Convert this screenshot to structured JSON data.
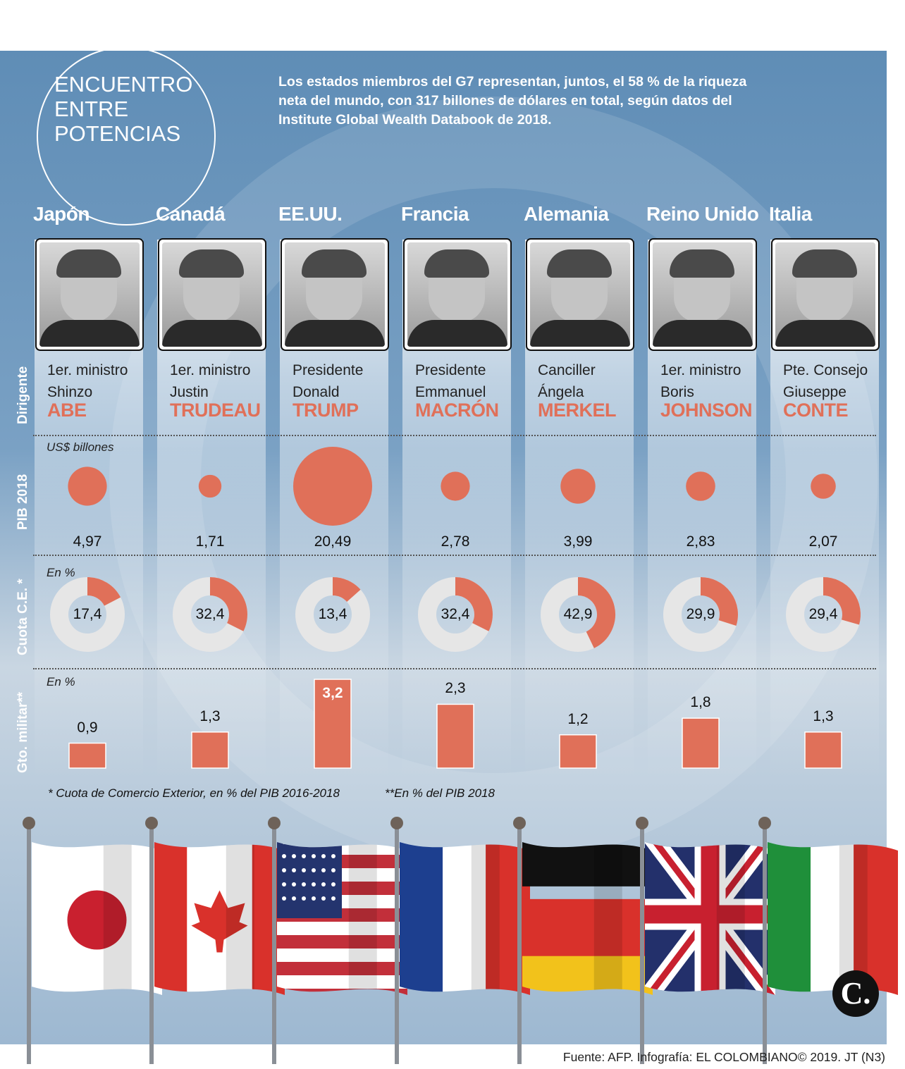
{
  "title": [
    "ENCUENTRO",
    "ENTRE",
    "POTENCIAS"
  ],
  "intro": "Los estados miembros del G7 representan, juntos, el 58 % de la riqueza neta del mundo, con 317 billones de dólares en total, según datos del Institute Global Wealth Databook de 2018.",
  "row_labels": {
    "leader": "Dirigente",
    "gdp": "PIB 2018",
    "trade": "Cuota C.E. *",
    "military": "Gto. militar**"
  },
  "units": {
    "gdp": "US$ billones",
    "trade": "En %",
    "military": "En %"
  },
  "footnotes": [
    "* Cuota de Comercio Exterior, en % del PIB 2016-2018",
    "**En % del PIB 2018"
  ],
  "source": "Fuente: AFP. Infografía: EL COLOMBIANO© 2019. JT (N3)",
  "logo": "C.",
  "colors": {
    "accent": "#e07059",
    "panel": "#6b95bd",
    "ring": "#e6e6e6"
  },
  "countries": [
    {
      "name": "Japón",
      "role": "1er. ministro",
      "first": "Shinzo",
      "last": "ABE",
      "photo_icon": "portrait-abe-icon"
    },
    {
      "name": "Canadá",
      "role": "1er. ministro",
      "first": "Justin",
      "last": "TRUDEAU",
      "photo_icon": "portrait-trudeau-icon"
    },
    {
      "name": "EE.UU.",
      "role": "Presidente",
      "first": "Donald",
      "last": "TRUMP",
      "photo_icon": "portrait-trump-icon"
    },
    {
      "name": "Francia",
      "role": "Presidente",
      "first": "Emmanuel",
      "last": "MACRÓN",
      "photo_icon": "portrait-macron-icon"
    },
    {
      "name": "Alemania",
      "role": "Canciller",
      "first": "Ángela",
      "last": "MERKEL",
      "photo_icon": "portrait-merkel-icon"
    },
    {
      "name": "Reino Unido",
      "role": "1er. ministro",
      "first": "Boris",
      "last": "JOHNSON",
      "photo_icon": "portrait-johnson-icon"
    },
    {
      "name": "Italia",
      "role": "Pte. Consejo",
      "first": "Giuseppe",
      "last": "CONTE",
      "photo_icon": "portrait-conte-icon"
    }
  ],
  "chart_data": [
    {
      "type": "bubble",
      "title": "PIB 2018",
      "unit": "US$ billones",
      "categories": [
        "Japón",
        "Canadá",
        "EE.UU.",
        "Francia",
        "Alemania",
        "Reino Unido",
        "Italia"
      ],
      "values": [
        4.97,
        1.71,
        20.49,
        2.78,
        3.99,
        2.83,
        2.07
      ],
      "labels": [
        "4,97",
        "1,71",
        "20,49",
        "2,78",
        "3,99",
        "2,83",
        "2,07"
      ]
    },
    {
      "type": "donut",
      "title": "Cuota C.E. *",
      "unit": "En %",
      "categories": [
        "Japón",
        "Canadá",
        "EE.UU.",
        "Francia",
        "Alemania",
        "Reino Unido",
        "Italia"
      ],
      "values": [
        17.4,
        32.4,
        13.4,
        32.4,
        42.9,
        29.9,
        29.4
      ],
      "labels": [
        "17,4",
        "32,4",
        "13,4",
        "32,4",
        "42,9",
        "29,9",
        "29,4"
      ],
      "ylim": [
        0,
        100
      ]
    },
    {
      "type": "bar",
      "title": "Gto. militar**",
      "unit": "En %",
      "categories": [
        "Japón",
        "Canadá",
        "EE.UU.",
        "Francia",
        "Alemania",
        "Reino Unido",
        "Italia"
      ],
      "values": [
        0.9,
        1.3,
        3.2,
        2.3,
        1.2,
        1.8,
        1.3
      ],
      "labels": [
        "0,9",
        "1,3",
        "3,2",
        "2,3",
        "1,2",
        "1,8",
        "1,3"
      ],
      "ylim": [
        0,
        3.2
      ]
    }
  ]
}
